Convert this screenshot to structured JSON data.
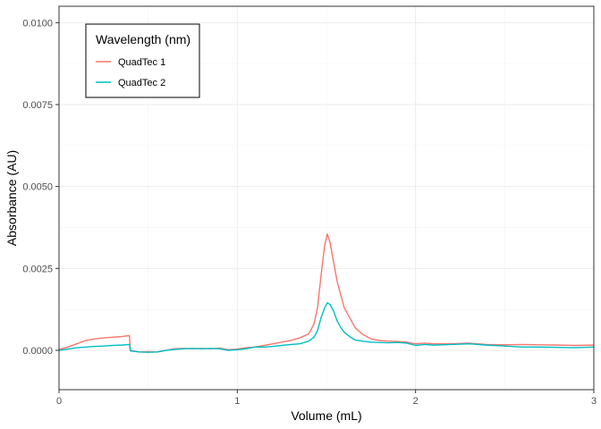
{
  "chart_data": {
    "type": "line",
    "title": "",
    "xlabel": "Volume (mL)",
    "ylabel": "Absorbance (AU)",
    "xlim": [
      0,
      3
    ],
    "ylim": [
      -0.0012,
      0.0105
    ],
    "x_ticks": [
      0,
      1,
      2,
      3
    ],
    "x_tick_labels": [
      "0",
      "1",
      "2",
      "3"
    ],
    "y_ticks": [
      0,
      0.0025,
      0.005,
      0.0075,
      0.01
    ],
    "y_tick_labels": [
      "0.0000",
      "0.0025",
      "0.0050",
      "0.0075",
      "0.0100"
    ],
    "grid": true,
    "legend": {
      "title": "Wavelength (nm)",
      "position": "top-left"
    },
    "series": [
      {
        "name": "QuadTec 1",
        "color": "#F8766D",
        "points": [
          [
            0,
            3e-05
          ],
          [
            0.05,
            0.0001
          ],
          [
            0.1,
            0.0002
          ],
          [
            0.15,
            0.0003
          ],
          [
            0.2,
            0.00035
          ],
          [
            0.25,
            0.00038
          ],
          [
            0.3,
            0.0004
          ],
          [
            0.35,
            0.00042
          ],
          [
            0.395,
            0.00045
          ],
          [
            0.4,
            0.0
          ],
          [
            0.45,
            -5e-05
          ],
          [
            0.5,
            -4e-05
          ],
          [
            0.55,
            -5e-05
          ],
          [
            0.6,
            0.0
          ],
          [
            0.65,
            5e-05
          ],
          [
            0.7,
            6e-05
          ],
          [
            0.75,
            5e-05
          ],
          [
            0.8,
            6e-05
          ],
          [
            0.85,
            5e-05
          ],
          [
            0.9,
            7e-05
          ],
          [
            0.95,
            2e-05
          ],
          [
            1.0,
            4e-05
          ],
          [
            1.05,
            8e-05
          ],
          [
            1.1,
            0.0001
          ],
          [
            1.15,
            0.00015
          ],
          [
            1.2,
            0.0002
          ],
          [
            1.25,
            0.00025
          ],
          [
            1.3,
            0.0003
          ],
          [
            1.35,
            0.00038
          ],
          [
            1.4,
            0.0005
          ],
          [
            1.43,
            0.0008
          ],
          [
            1.45,
            0.0013
          ],
          [
            1.47,
            0.0023
          ],
          [
            1.49,
            0.0032
          ],
          [
            1.505,
            0.00355
          ],
          [
            1.52,
            0.0033
          ],
          [
            1.54,
            0.0027
          ],
          [
            1.56,
            0.0021
          ],
          [
            1.58,
            0.0017
          ],
          [
            1.6,
            0.0013
          ],
          [
            1.63,
            0.001
          ],
          [
            1.66,
            0.0007
          ],
          [
            1.7,
            0.0005
          ],
          [
            1.75,
            0.00035
          ],
          [
            1.8,
            0.0003
          ],
          [
            1.85,
            0.00028
          ],
          [
            1.9,
            0.00027
          ],
          [
            1.95,
            0.00025
          ],
          [
            2.0,
            0.0002
          ],
          [
            2.05,
            0.00022
          ],
          [
            2.1,
            0.0002
          ],
          [
            2.2,
            0.0002
          ],
          [
            2.3,
            0.00022
          ],
          [
            2.4,
            0.00018
          ],
          [
            2.5,
            0.00017
          ],
          [
            2.6,
            0.00018
          ],
          [
            2.7,
            0.00017
          ],
          [
            2.8,
            0.00016
          ],
          [
            2.9,
            0.00015
          ],
          [
            3.0,
            0.00016
          ]
        ]
      },
      {
        "name": "QuadTec 2",
        "color": "#00BFC4",
        "points": [
          [
            0,
            0.0
          ],
          [
            0.05,
            4e-05
          ],
          [
            0.1,
            8e-05
          ],
          [
            0.15,
            0.0001
          ],
          [
            0.2,
            0.00012
          ],
          [
            0.25,
            0.00013
          ],
          [
            0.3,
            0.00015
          ],
          [
            0.35,
            0.00016
          ],
          [
            0.395,
            0.00018
          ],
          [
            0.4,
            -2e-05
          ],
          [
            0.45,
            -5e-05
          ],
          [
            0.5,
            -6e-05
          ],
          [
            0.55,
            -5e-05
          ],
          [
            0.6,
            0.0
          ],
          [
            0.65,
            3e-05
          ],
          [
            0.7,
            5e-05
          ],
          [
            0.75,
            6e-05
          ],
          [
            0.8,
            5e-05
          ],
          [
            0.85,
            6e-05
          ],
          [
            0.9,
            5e-05
          ],
          [
            0.95,
            0.0
          ],
          [
            1.0,
            2e-05
          ],
          [
            1.05,
            5e-05
          ],
          [
            1.1,
            0.0001
          ],
          [
            1.15,
            0.0001
          ],
          [
            1.2,
            0.00012
          ],
          [
            1.25,
            0.00015
          ],
          [
            1.3,
            0.00018
          ],
          [
            1.35,
            0.0002
          ],
          [
            1.4,
            0.00028
          ],
          [
            1.43,
            0.0004
          ],
          [
            1.45,
            0.0006
          ],
          [
            1.47,
            0.001
          ],
          [
            1.49,
            0.0013
          ],
          [
            1.505,
            0.00145
          ],
          [
            1.52,
            0.0014
          ],
          [
            1.54,
            0.0012
          ],
          [
            1.56,
            0.0009
          ],
          [
            1.58,
            0.0007
          ],
          [
            1.6,
            0.00055
          ],
          [
            1.63,
            0.00042
          ],
          [
            1.66,
            0.00032
          ],
          [
            1.7,
            0.00028
          ],
          [
            1.75,
            0.00025
          ],
          [
            1.8,
            0.00024
          ],
          [
            1.85,
            0.00023
          ],
          [
            1.9,
            0.00024
          ],
          [
            1.95,
            0.00022
          ],
          [
            2.0,
            0.00015
          ],
          [
            2.05,
            0.00018
          ],
          [
            2.1,
            0.00016
          ],
          [
            2.2,
            0.00018
          ],
          [
            2.3,
            0.0002
          ],
          [
            2.4,
            0.00016
          ],
          [
            2.5,
            0.00013
          ],
          [
            2.6,
            0.0001
          ],
          [
            2.7,
            0.0001
          ],
          [
            2.8,
            9e-05
          ],
          [
            2.9,
            8e-05
          ],
          [
            3.0,
            0.0001
          ]
        ]
      }
    ]
  }
}
